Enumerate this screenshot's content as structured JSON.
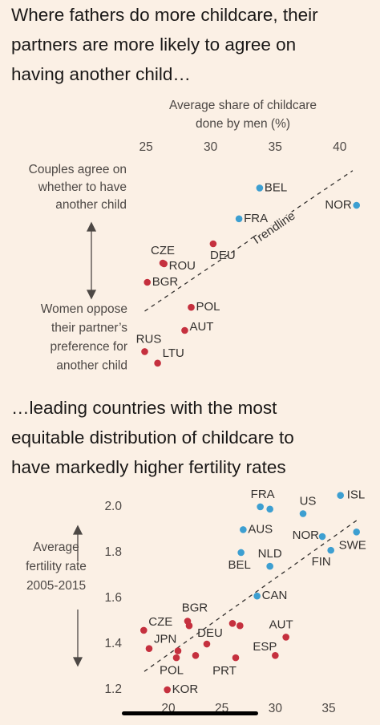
{
  "chart_data": [
    {
      "type": "scatter",
      "title_lines": [
        "Where fathers do more childcare, their",
        "partners are more likely to agree on",
        "having another child…"
      ],
      "x_label": [
        "Average share of childcare",
        "done by men (%)"
      ],
      "y_top_label": [
        "Couples agree on",
        "whether to have",
        "another child"
      ],
      "y_bottom_label": [
        "Women oppose",
        "their partner’s",
        "preference for",
        "another child"
      ],
      "xlim": [
        24,
        42
      ],
      "xticks": [
        25,
        30,
        35,
        40
      ],
      "ylim": [
        0,
        105
      ],
      "labels": [
        "BEL",
        "FRA",
        "NOR",
        "DEU",
        "CZE",
        "ROU",
        "BGR",
        "POL",
        "AUT",
        "RUS",
        "LTU"
      ],
      "x": [
        33.8,
        32.2,
        41.3,
        30.2,
        26.3,
        26.4,
        25.1,
        28.5,
        28.0,
        24.9,
        25.9
      ],
      "y": [
        94,
        78,
        85,
        65,
        55,
        54.6,
        45,
        32,
        20,
        9,
        3
      ],
      "colors": [
        "#3d9fd1",
        "#3d9fd1",
        "#3d9fd1",
        "#c5303e",
        "#c5303e",
        "#c5303e",
        "#c5303e",
        "#c5303e",
        "#c5303e",
        "#c5303e",
        "#c5303e"
      ],
      "trendline": {
        "label": "Trendline",
        "x": [
          24.9,
          41
        ],
        "y": [
          30,
          103
        ]
      }
    },
    {
      "type": "scatter",
      "title_lines": [
        "…leading countries with the most",
        "equitable distribution of childcare to",
        "have markedly higher fertility rates"
      ],
      "y_label": [
        "Average",
        "fertility rate",
        "2005-2015"
      ],
      "xlim": [
        16.5,
        38.5
      ],
      "xticks": [
        20,
        25,
        30,
        35
      ],
      "ylim": [
        1.13,
        2.07
      ],
      "yticks": [
        {
          "value": 2.0,
          "label": "2.0"
        },
        1.8,
        1.6,
        1.4,
        1.2
      ],
      "labels": [
        "FRA",
        null,
        "US",
        "ISL",
        "AUS",
        "NOR",
        "SWE",
        "BEL",
        "NLD",
        "FIN",
        "CAN",
        "BGR",
        null,
        "CZE",
        "JPN",
        "DEU",
        null,
        null,
        "AUT",
        "ESP",
        "POL",
        null,
        null,
        "PRT",
        "KOR"
      ],
      "x": [
        28.6,
        29.5,
        32.6,
        36.1,
        27.0,
        34.4,
        37.6,
        26.8,
        29.5,
        35.2,
        28.3,
        21.8,
        21.95,
        17.7,
        18.2,
        23.6,
        26.0,
        26.7,
        31.0,
        30.0,
        20.9,
        20.75,
        22.55,
        26.3,
        19.9
      ],
      "y": [
        2.0,
        1.99,
        1.97,
        2.05,
        1.9,
        1.87,
        1.89,
        1.8,
        1.74,
        1.81,
        1.61,
        1.5,
        1.48,
        1.46,
        1.38,
        1.4,
        1.49,
        1.48,
        1.43,
        1.35,
        1.37,
        1.34,
        1.35,
        1.34,
        1.2
      ],
      "colors": [
        "#3d9fd1",
        "#3d9fd1",
        "#3d9fd1",
        "#3d9fd1",
        "#3d9fd1",
        "#3d9fd1",
        "#3d9fd1",
        "#3d9fd1",
        "#3d9fd1",
        "#3d9fd1",
        "#3d9fd1",
        "#c5303e",
        "#c5303e",
        "#c5303e",
        "#c5303e",
        "#c5303e",
        "#c5303e",
        "#c5303e",
        "#c5303e",
        "#c5303e",
        "#c5303e",
        "#c5303e",
        "#c5303e",
        "#c5303e",
        "#c5303e"
      ],
      "trendline": {
        "x": [
          17.75,
          37.6
        ],
        "y": [
          1.28,
          1.94
        ]
      }
    }
  ]
}
